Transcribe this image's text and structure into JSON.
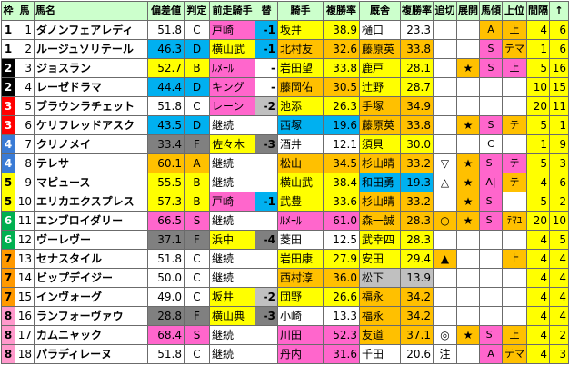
{
  "header": {
    "waku": "枠",
    "uma": "馬",
    "name": "馬名",
    "hensa": "偏差値",
    "hantei": "判定",
    "zen_jockey": "前走騎手",
    "kawari": "替",
    "jockey": "騎手",
    "j_rate": "複勝率",
    "trainer": "厩舎",
    "t_rate": "複勝率",
    "oikiri": "追切",
    "tenkai": "展開",
    "bakei": "馬傾",
    "joui": "上位",
    "kankaku": "間隔",
    "arrow": "↑"
  },
  "rows": [
    {
      "waku": "1",
      "uma": "1",
      "name": "ダノンフェアレディ",
      "hensa": "51.8",
      "hantei": "C",
      "zen": "戸崎",
      "kawari": "-1",
      "jockey": "坂井",
      "jr": "38.9",
      "trainer": "樋口",
      "tr": "23.3",
      "oikiri": "",
      "tenkai": "",
      "bakei": "A",
      "joui": "上",
      "kan": "4",
      "arrow": "6",
      "waku_bg": "#ffffff",
      "waku_fg": "#000000",
      "name_bg": "#ffffff",
      "hensa_bg": "#ffffff",
      "zen_bg": "#ff66cc",
      "kawari_bg": "#00b0f0",
      "jockey_bg": "#ffff00",
      "trainer_bg": "#ffffff",
      "oikiri_bg": "#ffffff",
      "tenkai_bg": "#ffffff",
      "bakei_bg": "#ffc000",
      "joui_bg": "#ffc000",
      "kan_bg": "#ffff00",
      "arrow_bg": "#ffff00"
    },
    {
      "waku": "1",
      "uma": "2",
      "name": "ルージュソリテール",
      "hensa": "46.3",
      "hantei": "D",
      "zen": "横山武",
      "kawari": "-1",
      "jockey": "北村友",
      "jr": "32.6",
      "trainer": "藤原英",
      "tr": "33.8",
      "oikiri": "",
      "tenkai": "",
      "bakei": "S",
      "joui": "テマ",
      "kan": "1",
      "arrow": "6",
      "waku_bg": "#ffffff",
      "waku_fg": "#000000",
      "name_bg": "#ffffff",
      "hensa_bg": "#00b0f0",
      "zen_bg": "#ffff00",
      "kawari_bg": "#00b0f0",
      "jockey_bg": "#ffc000",
      "trainer_bg": "#ffc000",
      "oikiri_bg": "#ffffff",
      "tenkai_bg": "#ffffff",
      "bakei_bg": "#ff66cc",
      "joui_bg": "#ffc000",
      "kan_bg": "#ffff00",
      "arrow_bg": "#ffff00"
    },
    {
      "waku": "2",
      "uma": "3",
      "name": "ジョスラン",
      "hensa": "52.7",
      "hantei": "B",
      "zen": "ﾙﾒｰﾙ",
      "kawari": "-",
      "jockey": "岩田望",
      "jr": "33.8",
      "trainer": "鹿戸",
      "tr": "28.1",
      "oikiri": "",
      "tenkai": "★",
      "bakei": "S",
      "joui": "上",
      "kan": "5",
      "arrow": "16",
      "waku_bg": "#000000",
      "waku_fg": "#ffffff",
      "name_bg": "#ffffff",
      "hensa_bg": "#ffff00",
      "zen_bg": "#ff66cc",
      "kawari_bg": "#ffffff",
      "jockey_bg": "#ffff00",
      "trainer_bg": "#ffff00",
      "oikiri_bg": "#ffffff",
      "tenkai_bg": "#ffc000",
      "bakei_bg": "#ff66cc",
      "joui_bg": "#ff66cc",
      "kan_bg": "#ffff00",
      "arrow_bg": "#ffff00"
    },
    {
      "waku": "2",
      "uma": "4",
      "name": "レーゼドラマ",
      "hensa": "44.4",
      "hantei": "D",
      "zen": "キング",
      "kawari": "-",
      "jockey": "藤岡佑",
      "jr": "30.5",
      "trainer": "辻野",
      "tr": "28.7",
      "oikiri": "",
      "tenkai": "",
      "bakei": "",
      "joui": "",
      "kan": "10",
      "arrow": "15",
      "waku_bg": "#000000",
      "waku_fg": "#ffffff",
      "name_bg": "#ffffff",
      "hensa_bg": "#00b0f0",
      "zen_bg": "#ff66cc",
      "kawari_bg": "#ffffff",
      "jockey_bg": "#ffc000",
      "trainer_bg": "#ffff00",
      "oikiri_bg": "#ffffff",
      "tenkai_bg": "#ffffff",
      "bakei_bg": "#ffffff",
      "joui_bg": "#ffffff",
      "kan_bg": "#ffff00",
      "arrow_bg": "#ffff00"
    },
    {
      "waku": "3",
      "uma": "5",
      "name": "ブラウンラチェット",
      "hensa": "51.8",
      "hantei": "C",
      "zen": "レーン",
      "kawari": "-2",
      "jockey": "池添",
      "jr": "26.3",
      "trainer": "手塚",
      "tr": "34.9",
      "oikiri": "",
      "tenkai": "",
      "bakei": "",
      "joui": "",
      "kan": "20",
      "arrow": "11",
      "waku_bg": "#ff0000",
      "waku_fg": "#ffffff",
      "name_bg": "#ffffff",
      "hensa_bg": "#ffffff",
      "zen_bg": "#ff66cc",
      "kawari_bg": "#c0c0c0",
      "jockey_bg": "#ffff00",
      "trainer_bg": "#ffc000",
      "oikiri_bg": "#ffffff",
      "tenkai_bg": "#ffffff",
      "bakei_bg": "#ffffff",
      "joui_bg": "#ffffff",
      "kan_bg": "#ffff00",
      "arrow_bg": "#ffff00"
    },
    {
      "waku": "3",
      "uma": "6",
      "name": "ケリフレッドアスク",
      "hensa": "43.5",
      "hantei": "D",
      "zen": "継続",
      "kawari": "",
      "jockey": "西塚",
      "jr": "19.6",
      "trainer": "藤原英",
      "tr": "33.8",
      "oikiri": "",
      "tenkai": "★",
      "bakei": "S",
      "joui": "テ",
      "kan": "5",
      "arrow": "1",
      "waku_bg": "#ff0000",
      "waku_fg": "#ffffff",
      "name_bg": "#ffffff",
      "hensa_bg": "#00b0f0",
      "zen_bg": "#ffffff",
      "kawari_bg": "#ffffff",
      "jockey_bg": "#00b0f0",
      "trainer_bg": "#ffc000",
      "oikiri_bg": "#ffffff",
      "tenkai_bg": "#ffc000",
      "bakei_bg": "#ff66cc",
      "joui_bg": "#ffc000",
      "kan_bg": "#ffff00",
      "arrow_bg": "#ffff00"
    },
    {
      "waku": "4",
      "uma": "7",
      "name": "クリノメイ",
      "hensa": "33.4",
      "hantei": "F",
      "zen": "佐々木",
      "kawari": "-3",
      "jockey": "酒井",
      "jr": "12.1",
      "trainer": "須貝",
      "tr": "30.0",
      "oikiri": "",
      "tenkai": "",
      "bakei": "C",
      "joui": "",
      "kan": "1",
      "arrow": "9",
      "waku_bg": "#3a7bd5",
      "waku_fg": "#ffffff",
      "name_bg": "#ffffff",
      "hensa_bg": "#808080",
      "zen_bg": "#ffff00",
      "kawari_bg": "#808080",
      "jockey_bg": "#ffffff",
      "trainer_bg": "#ffff00",
      "oikiri_bg": "#ffffff",
      "tenkai_bg": "#ffffff",
      "bakei_bg": "#ffffff",
      "joui_bg": "#ffffff",
      "kan_bg": "#ffff00",
      "arrow_bg": "#ffff00"
    },
    {
      "waku": "4",
      "uma": "8",
      "name": "テレサ",
      "hensa": "60.1",
      "hantei": "A",
      "zen": "継続",
      "kawari": "",
      "jockey": "松山",
      "jr": "34.5",
      "trainer": "杉山晴",
      "tr": "33.2",
      "oikiri": "▽",
      "tenkai": "★",
      "bakei": "S|",
      "joui": "テ",
      "kan": "5",
      "arrow": "3",
      "waku_bg": "#3a7bd5",
      "waku_fg": "#ffffff",
      "name_bg": "#ffffff",
      "hensa_bg": "#ffc000",
      "zen_bg": "#ffffff",
      "kawari_bg": "#ffffff",
      "jockey_bg": "#ffc000",
      "trainer_bg": "#ffc000",
      "oikiri_bg": "#ffffff",
      "tenkai_bg": "#ffc000",
      "bakei_bg": "#ff66cc",
      "joui_bg": "#ff66cc",
      "kan_bg": "#ffff00",
      "arrow_bg": "#ffff00"
    },
    {
      "waku": "5",
      "uma": "9",
      "name": "マピュース",
      "hensa": "55.5",
      "hantei": "B",
      "zen": "継続",
      "kawari": "",
      "jockey": "横山武",
      "jr": "38.4",
      "trainer": "和田勇",
      "tr": "19.3",
      "oikiri": "△",
      "tenkai": "★",
      "bakei": "A|",
      "joui": "テ",
      "kan": "4",
      "arrow": "6",
      "waku_bg": "#ffff00",
      "waku_fg": "#000000",
      "name_bg": "#ffffff",
      "hensa_bg": "#ffff00",
      "zen_bg": "#ffffff",
      "kawari_bg": "#ffffff",
      "jockey_bg": "#ffff00",
      "trainer_bg": "#00b0f0",
      "oikiri_bg": "#ffffff",
      "tenkai_bg": "#ffc000",
      "bakei_bg": "#ff66cc",
      "joui_bg": "#ffc000",
      "kan_bg": "#ffff00",
      "arrow_bg": "#ffff00"
    },
    {
      "waku": "5",
      "uma": "10",
      "name": "エリカエクスプレス",
      "hensa": "57.3",
      "hantei": "B",
      "zen": "戸崎",
      "kawari": "-1",
      "jockey": "武豊",
      "jr": "33.6",
      "trainer": "杉山晴",
      "tr": "33.2",
      "oikiri": "",
      "tenkai": "★",
      "bakei": "S|",
      "joui": "",
      "kan": "5",
      "arrow": "2",
      "waku_bg": "#ffff00",
      "waku_fg": "#000000",
      "name_bg": "#ffffff",
      "hensa_bg": "#ffff00",
      "zen_bg": "#ff66cc",
      "kawari_bg": "#00b0f0",
      "jockey_bg": "#ffff00",
      "trainer_bg": "#ffc000",
      "oikiri_bg": "#ffffff",
      "tenkai_bg": "#ffc000",
      "bakei_bg": "#ff66cc",
      "joui_bg": "#ffffff",
      "kan_bg": "#ffff00",
      "arrow_bg": "#ffff00"
    },
    {
      "waku": "6",
      "uma": "11",
      "name": "エンブロイダリー",
      "hensa": "66.5",
      "hantei": "S",
      "zen": "継続",
      "kawari": "",
      "jockey": "ﾙﾒｰﾙ",
      "jr": "61.0",
      "trainer": "森一誠",
      "tr": "28.3",
      "oikiri": "○",
      "tenkai": "★",
      "bakei": "S|",
      "joui": "ﾃﾏﾕ",
      "kan": "20",
      "arrow": "10",
      "waku_bg": "#00b050",
      "waku_fg": "#ffffff",
      "name_bg": "#ffffff",
      "hensa_bg": "#ff66cc",
      "zen_bg": "#ffffff",
      "kawari_bg": "#ffffff",
      "jockey_bg": "#ff66cc",
      "trainer_bg": "#ffc000",
      "oikiri_bg": "#ffc000",
      "tenkai_bg": "#ffc000",
      "bakei_bg": "#ff66cc",
      "joui_bg": "#ffc000",
      "kan_bg": "#ffff00",
      "arrow_bg": "#ffff00"
    },
    {
      "waku": "6",
      "uma": "12",
      "name": "ヴーレヴー",
      "hensa": "37.1",
      "hantei": "F",
      "zen": "浜中",
      "kawari": "-4",
      "jockey": "菱田",
      "jr": "12.5",
      "trainer": "武幸四",
      "tr": "28.3",
      "oikiri": "",
      "tenkai": "",
      "bakei": "",
      "joui": "",
      "kan": "4",
      "arrow": "5",
      "waku_bg": "#00b050",
      "waku_fg": "#ffffff",
      "name_bg": "#ffffff",
      "hensa_bg": "#808080",
      "zen_bg": "#ffff00",
      "kawari_bg": "#808080",
      "jockey_bg": "#ffffff",
      "trainer_bg": "#ffff00",
      "oikiri_bg": "#ffffff",
      "tenkai_bg": "#ffffff",
      "bakei_bg": "#ffffff",
      "joui_bg": "#ffffff",
      "kan_bg": "#ffff00",
      "arrow_bg": "#ffff00"
    },
    {
      "waku": "7",
      "uma": "13",
      "name": "セナスタイル",
      "hensa": "51.8",
      "hantei": "C",
      "zen": "継続",
      "kawari": "",
      "jockey": "岩田康",
      "jr": "27.9",
      "trainer": "安田",
      "tr": "29.4",
      "oikiri": "▲",
      "tenkai": "",
      "bakei": "",
      "joui": "上",
      "kan": "4",
      "arrow": "4",
      "waku_bg": "#ff9900",
      "waku_fg": "#000000",
      "name_bg": "#ffffff",
      "hensa_bg": "#ffffff",
      "zen_bg": "#ffffff",
      "kawari_bg": "#ffffff",
      "jockey_bg": "#ffff00",
      "trainer_bg": "#ffff00",
      "oikiri_bg": "#ffc000",
      "tenkai_bg": "#ffffff",
      "bakei_bg": "#ffffff",
      "joui_bg": "#ffc000",
      "kan_bg": "#ffff00",
      "arrow_bg": "#ffff00"
    },
    {
      "waku": "7",
      "uma": "14",
      "name": "ビップデイジー",
      "hensa": "50.0",
      "hantei": "C",
      "zen": "継続",
      "kawari": "",
      "jockey": "西村淳",
      "jr": "36.0",
      "trainer": "松下",
      "tr": "13.9",
      "oikiri": "",
      "tenkai": "",
      "bakei": "",
      "joui": "",
      "kan": "4",
      "arrow": "4",
      "waku_bg": "#ff9900",
      "waku_fg": "#000000",
      "name_bg": "#ffffff",
      "hensa_bg": "#ffffff",
      "zen_bg": "#ffffff",
      "kawari_bg": "#ffffff",
      "jockey_bg": "#ffc000",
      "trainer_bg": "#c0c0c0",
      "oikiri_bg": "#ffffff",
      "tenkai_bg": "#ffffff",
      "bakei_bg": "#ffffff",
      "joui_bg": "#ffffff",
      "kan_bg": "#ffff00",
      "arrow_bg": "#ffff00"
    },
    {
      "waku": "7",
      "uma": "15",
      "name": "インヴォーグ",
      "hensa": "49.0",
      "hantei": "C",
      "zen": "坂井",
      "kawari": "-2",
      "jockey": "団野",
      "jr": "26.6",
      "trainer": "福永",
      "tr": "34.2",
      "oikiri": "",
      "tenkai": "",
      "bakei": "",
      "joui": "",
      "kan": "4",
      "arrow": "4",
      "waku_bg": "#ff9900",
      "waku_fg": "#000000",
      "name_bg": "#ffffff",
      "hensa_bg": "#ffffff",
      "zen_bg": "#ffff00",
      "kawari_bg": "#c0c0c0",
      "jockey_bg": "#ffff00",
      "trainer_bg": "#ffc000",
      "oikiri_bg": "#ffffff",
      "tenkai_bg": "#ffffff",
      "bakei_bg": "#ffffff",
      "joui_bg": "#ffffff",
      "kan_bg": "#ffff00",
      "arrow_bg": "#ffff00"
    },
    {
      "waku": "8",
      "uma": "16",
      "name": "ランフォーヴァウ",
      "hensa": "28.8",
      "hantei": "F",
      "zen": "横山典",
      "kawari": "-3",
      "jockey": "小崎",
      "jr": "13.3",
      "trainer": "福永",
      "tr": "34.2",
      "oikiri": "",
      "tenkai": "",
      "bakei": "",
      "joui": "",
      "kan": "4",
      "arrow": "4",
      "waku_bg": "#ff99cc",
      "waku_fg": "#000000",
      "name_bg": "#ffffff",
      "hensa_bg": "#808080",
      "zen_bg": "#ffff00",
      "kawari_bg": "#808080",
      "jockey_bg": "#ffffff",
      "trainer_bg": "#ffc000",
      "oikiri_bg": "#ffffff",
      "tenkai_bg": "#ffffff",
      "bakei_bg": "#ffffff",
      "joui_bg": "#ffffff",
      "kan_bg": "#ffff00",
      "arrow_bg": "#ffff00"
    },
    {
      "waku": "8",
      "uma": "17",
      "name": "カムニャック",
      "hensa": "68.4",
      "hantei": "S",
      "zen": "継続",
      "kawari": "",
      "jockey": "川田",
      "jr": "52.3",
      "trainer": "友道",
      "tr": "37.1",
      "oikiri": "◎",
      "tenkai": "★",
      "bakei": "S|",
      "joui": "上",
      "kan": "4",
      "arrow": "2",
      "waku_bg": "#ff99cc",
      "waku_fg": "#000000",
      "name_bg": "#ffffff",
      "hensa_bg": "#ff66cc",
      "zen_bg": "#ffffff",
      "kawari_bg": "#ffffff",
      "jockey_bg": "#ff66cc",
      "trainer_bg": "#ffc000",
      "oikiri_bg": "#ffffff",
      "tenkai_bg": "#ffc000",
      "bakei_bg": "#ff66cc",
      "joui_bg": "#ffc000",
      "kan_bg": "#ffff00",
      "arrow_bg": "#ffff00"
    },
    {
      "waku": "8",
      "uma": "18",
      "name": "パラディレーヌ",
      "hensa": "51.8",
      "hantei": "C",
      "zen": "継続",
      "kawari": "",
      "jockey": "丹内",
      "jr": "31.6",
      "trainer": "千田",
      "tr": "20.6",
      "oikiri": "注",
      "tenkai": "",
      "bakei": "A",
      "joui": "テマ",
      "kan": "4",
      "arrow": "3",
      "waku_bg": "#ff99cc",
      "waku_fg": "#000000",
      "name_bg": "#ffffff",
      "hensa_bg": "#ffffff",
      "zen_bg": "#ffffff",
      "kawari_bg": "#ffffff",
      "jockey_bg": "#ff66cc",
      "trainer_bg": "#ffffff",
      "oikiri_bg": "#ffffff",
      "tenkai_bg": "#ffffff",
      "bakei_bg": "#ff66cc",
      "joui_bg": "#ffc000",
      "kan_bg": "#ffff00",
      "arrow_bg": "#ffff00"
    }
  ],
  "colors": {
    "header_bg": "#ccffcc",
    "grid": "#6b6b6b"
  }
}
